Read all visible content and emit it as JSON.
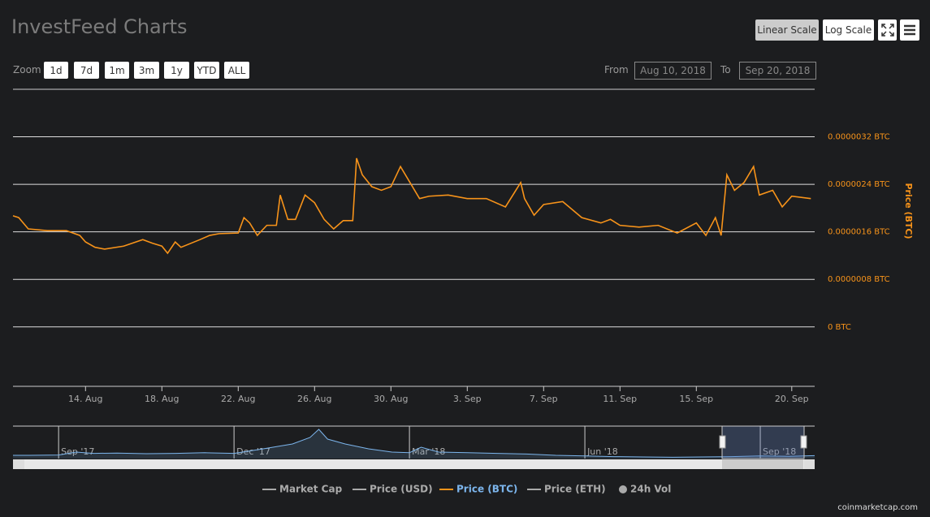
{
  "header": {
    "title": "InvestFeed Charts",
    "scale_buttons": [
      "Linear Scale",
      "Log Scale"
    ]
  },
  "zoom": {
    "label": "Zoom",
    "buttons": [
      "1d",
      "7d",
      "1m",
      "3m",
      "1y",
      "YTD",
      "ALL"
    ]
  },
  "range": {
    "from_label": "From",
    "from": "Aug 10, 2018",
    "to_label": "To",
    "to": "Sep 20, 2018"
  },
  "chart_data": {
    "type": "line",
    "y_label": "Price (BTC)",
    "xlim": [
      0.2,
      42.2
    ],
    "xticks": [
      {
        "value": 4,
        "label": "14. Aug"
      },
      {
        "value": 8,
        "label": "18. Aug"
      },
      {
        "value": 12,
        "label": "22. Aug"
      },
      {
        "value": 16,
        "label": "26. Aug"
      },
      {
        "value": 20,
        "label": "30. Aug"
      },
      {
        "value": 24,
        "label": "3. Sep"
      },
      {
        "value": 28,
        "label": "7. Sep"
      },
      {
        "value": 32,
        "label": "11. Sep"
      },
      {
        "value": 36,
        "label": "15. Sep"
      },
      {
        "value": 41,
        "label": "20. Sep"
      }
    ],
    "ylim": [
      -1e-06,
      4e-06
    ],
    "yticks": [
      {
        "value": 0,
        "label": "0 BTC"
      },
      {
        "value": 8e-07,
        "label": "0.0000008 BTC"
      },
      {
        "value": 1.6e-06,
        "label": "0.0000016 BTC"
      },
      {
        "value": 2.4e-06,
        "label": "0.0000024 BTC"
      },
      {
        "value": 3.2e-06,
        "label": "0.0000032 BTC"
      }
    ],
    "grid": true,
    "series": [
      {
        "name": "Market Cap",
        "visible": false
      },
      {
        "name": "Price (USD)",
        "visible": false
      },
      {
        "name": "Price (BTC)",
        "visible": true,
        "color": "#f7931a",
        "x": [
          0.2,
          0.5,
          1,
          2,
          3,
          3.7,
          4,
          4.5,
          5,
          6,
          7,
          7.5,
          8,
          8.3,
          8.7,
          9,
          10,
          10.5,
          11,
          12,
          12.3,
          12.6,
          13,
          13.5,
          14,
          14.2,
          14.6,
          15,
          15.5,
          16,
          16.5,
          17,
          17.5,
          18,
          18.2,
          18.5,
          19,
          19.5,
          20,
          20.5,
          21,
          21.5,
          22,
          23,
          24,
          25,
          26,
          26.8,
          27,
          27.5,
          28,
          29,
          30,
          31,
          31.5,
          32,
          33,
          34,
          35,
          36,
          36.5,
          37,
          37.3,
          37.6,
          38,
          38.5,
          39,
          39.3,
          40,
          40.5,
          41,
          42
        ],
        "values": [
          1.87e-06,
          1.84e-06,
          1.65e-06,
          1.62e-06,
          1.62e-06,
          1.54e-06,
          1.43e-06,
          1.34e-06,
          1.31e-06,
          1.36e-06,
          1.47e-06,
          1.41e-06,
          1.36e-06,
          1.24e-06,
          1.43e-06,
          1.34e-06,
          1.47e-06,
          1.54e-06,
          1.57e-06,
          1.58e-06,
          1.84e-06,
          1.75e-06,
          1.54e-06,
          1.71e-06,
          1.71e-06,
          2.22e-06,
          1.81e-06,
          1.81e-06,
          2.22e-06,
          2.09e-06,
          1.81e-06,
          1.65e-06,
          1.79e-06,
          1.79e-06,
          2.84e-06,
          2.56e-06,
          2.36e-06,
          2.3e-06,
          2.36e-06,
          2.7e-06,
          2.43e-06,
          2.16e-06,
          2.2e-06,
          2.22e-06,
          2.16e-06,
          2.16e-06,
          2.02e-06,
          2.43e-06,
          2.16e-06,
          1.88e-06,
          2.06e-06,
          2.11e-06,
          1.84e-06,
          1.75e-06,
          1.81e-06,
          1.71e-06,
          1.68e-06,
          1.71e-06,
          1.58e-06,
          1.75e-06,
          1.54e-06,
          1.84e-06,
          1.54e-06,
          2.56e-06,
          2.3e-06,
          2.43e-06,
          2.7e-06,
          2.22e-06,
          2.3e-06,
          2.02e-06,
          2.2e-06,
          2.16e-06
        ]
      },
      {
        "name": "Price (ETH)",
        "visible": false
      },
      {
        "name": "24h Vol",
        "visible": false,
        "marker": "circle"
      }
    ],
    "navigator": {
      "xlim": [
        0.22,
        13.93
      ],
      "ylim": [
        0,
        1e-05
      ],
      "xticks": [
        {
          "value": 1,
          "label": "Sep '17"
        },
        {
          "value": 4,
          "label": "Dec '17"
        },
        {
          "value": 7,
          "label": "Mar '18"
        },
        {
          "value": 10,
          "label": "Jun '18"
        },
        {
          "value": 13,
          "label": "Sep '18"
        }
      ],
      "x": [
        0.22,
        0.5,
        1,
        1.3,
        1.6,
        2,
        2.5,
        3,
        3.5,
        4,
        4.5,
        5,
        5.3,
        5.45,
        5.6,
        5.9,
        6.3,
        6.7,
        7,
        7.2,
        7.5,
        8,
        8.5,
        9,
        9.5,
        10,
        10.5,
        11,
        11.5,
        12,
        12.5,
        13,
        13.5,
        13.93
      ],
      "values": [
        1e-06,
        1e-06,
        1.1e-06,
        2e-06,
        1.6e-06,
        1.7e-06,
        1.5e-06,
        1.6e-06,
        1.8e-06,
        1.6e-06,
        3e-06,
        4.5e-06,
        6.5e-06,
        9e-06,
        6e-06,
        4.5e-06,
        3e-06,
        2e-06,
        1.8e-06,
        3.5e-06,
        2e-06,
        1.8e-06,
        1.6e-06,
        1.4e-06,
        1e-06,
        8e-07,
        6e-07,
        5e-07,
        4e-07,
        5e-07,
        6e-07,
        8e-07,
        7e-07,
        9e-07
      ]
    }
  },
  "credit": "coinmarketcap.com"
}
